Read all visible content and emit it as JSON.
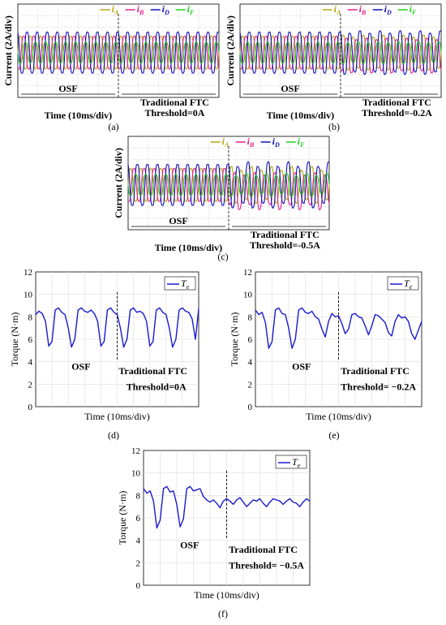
{
  "colors": {
    "iA": "#b5a514",
    "iB": "#e0208c",
    "iD": "#1010b8",
    "iF": "#22cc22",
    "Te": "#1a1ad0"
  },
  "chart_data": [
    {
      "type": "line",
      "label": "(a)",
      "ylabel": "Current (2A/div)",
      "xlabel": "Time (10ms/div)",
      "legend": [
        "iA",
        "iB",
        "iD",
        "iF"
      ],
      "legend_placement": "top-right",
      "annotations": {
        "left": "OSF",
        "right": [
          "Traditional FTC",
          "Threshold=0A"
        ]
      },
      "series": [
        {
          "name": "iA",
          "amplitude_div": 1.6,
          "phase_deg": 0
        },
        {
          "name": "iB",
          "amplitude_div": 1.6,
          "phase_deg": -120
        },
        {
          "name": "iD",
          "amplitude_div": 2.0,
          "phase_deg": 120
        },
        {
          "name": "iF",
          "amplitude_div": 1.0,
          "phase_deg": 180
        }
      ],
      "period_div": 0.5
    },
    {
      "type": "line",
      "label": "(b)",
      "ylabel": "Current (2A/div)",
      "xlabel": "Time (10ms/div)",
      "legend": [
        "iA",
        "iB",
        "iD",
        "iF"
      ],
      "legend_placement": "top-right",
      "annotations": {
        "left": "OSF",
        "right": [
          "Traditional FTC",
          "Threshold=-0.2A"
        ]
      },
      "series": [
        {
          "name": "iA",
          "amplitude_div": 1.6,
          "phase_deg": 0
        },
        {
          "name": "iB",
          "amplitude_div": 1.6,
          "phase_deg": -120
        },
        {
          "name": "iD",
          "amplitude_div": 2.0,
          "phase_deg": 120
        },
        {
          "name": "iF",
          "amplitude_div": 1.0,
          "phase_deg": 180
        }
      ],
      "period_div": 0.5
    },
    {
      "type": "line",
      "label": "(c)",
      "ylabel": "Current (2A/div)",
      "xlabel": "Time (10ms/div)",
      "legend": [
        "iA",
        "iB",
        "iD",
        "iF"
      ],
      "legend_placement": "top-right",
      "annotations": {
        "left": "OSF",
        "right": [
          "Traditional FTC",
          "Threshold=-0.5A"
        ]
      },
      "series": [
        {
          "name": "iA",
          "amplitude_div": 1.6,
          "phase_deg": 0
        },
        {
          "name": "iB",
          "amplitude_div": 1.6,
          "phase_deg": -120
        },
        {
          "name": "iD",
          "amplitude_div": 2.0,
          "phase_deg": 120
        },
        {
          "name": "iF",
          "amplitude_div": 1.0,
          "phase_deg": 180
        }
      ],
      "period_div": 0.5
    },
    {
      "type": "line",
      "label": "(d)",
      "ylabel": "Torque (N·m)",
      "xlabel": "Time (10ms/div)",
      "ylim": [
        0,
        12
      ],
      "yticks": [
        0,
        2,
        4,
        6,
        8,
        10,
        12
      ],
      "grid": true,
      "legend": [
        "Te"
      ],
      "legend_placement": "top-right",
      "annotations": {
        "left": "OSF",
        "right": [
          "Traditional FTC",
          "Threshold=0A"
        ]
      },
      "series": [
        {
          "name": "Te",
          "x": [
            0,
            0.2,
            0.4,
            0.6,
            0.8,
            1.0,
            1.2,
            1.4,
            1.6,
            1.8,
            2.0,
            2.2,
            2.4,
            2.6,
            2.8,
            3.0,
            3.2,
            3.4,
            3.6,
            3.8,
            4.0,
            4.2,
            4.4,
            4.6,
            4.8,
            5.0,
            5.2,
            5.4,
            5.6,
            5.8,
            6.0,
            6.2,
            6.4,
            6.6,
            6.8,
            7.0,
            7.2,
            7.4,
            7.6,
            7.8,
            8.0,
            8.2,
            8.4,
            8.6,
            8.8,
            9.0,
            9.2,
            9.4,
            9.6,
            9.8,
            10.0
          ],
          "y": [
            8.2,
            8.5,
            8.3,
            7.6,
            5.4,
            5.8,
            8.6,
            8.8,
            8.4,
            8.2,
            7.0,
            5.3,
            6.0,
            8.6,
            8.8,
            8.5,
            8.4,
            8.6,
            8.3,
            7.6,
            5.4,
            5.8,
            8.6,
            8.8,
            8.4,
            8.2,
            7.0,
            5.3,
            6.0,
            8.6,
            8.8,
            8.4,
            8.5,
            8.3,
            7.6,
            5.4,
            5.8,
            8.6,
            8.8,
            8.4,
            8.2,
            7.0,
            5.3,
            6.0,
            8.6,
            8.8,
            8.5,
            8.4,
            7.8,
            6.0,
            8.7
          ]
        }
      ]
    },
    {
      "type": "line",
      "label": "(e)",
      "ylabel": "Torque (N·m)",
      "xlabel": "Time (10ms/div)",
      "ylim": [
        0,
        12
      ],
      "yticks": [
        0,
        2,
        4,
        6,
        8,
        10,
        12
      ],
      "grid": true,
      "legend": [
        "Te"
      ],
      "legend_placement": "top-right",
      "annotations": {
        "left": "OSF",
        "right": [
          "Traditional FTC",
          "Threshold= −0.2A"
        ]
      },
      "series": [
        {
          "name": "Te",
          "x": [
            0,
            0.2,
            0.4,
            0.6,
            0.8,
            1.0,
            1.2,
            1.4,
            1.6,
            1.8,
            2.0,
            2.2,
            2.4,
            2.6,
            2.8,
            3.0,
            3.2,
            3.4,
            3.6,
            3.8,
            4.0,
            4.2,
            4.4,
            4.6,
            4.8,
            5.0,
            5.2,
            5.4,
            5.6,
            5.8,
            6.0,
            6.2,
            6.4,
            6.6,
            6.8,
            7.0,
            7.2,
            7.4,
            7.6,
            7.8,
            8.0,
            8.2,
            8.4,
            8.6,
            8.8,
            9.0,
            9.2,
            9.4,
            9.6,
            9.8,
            10.0
          ],
          "y": [
            8.6,
            8.2,
            8.4,
            7.5,
            5.2,
            5.8,
            8.6,
            8.8,
            8.3,
            8.2,
            7.0,
            5.2,
            6.0,
            8.6,
            8.8,
            8.4,
            8.3,
            8.5,
            8.0,
            7.8,
            6.9,
            6.2,
            7.6,
            8.3,
            8.0,
            8.1,
            7.4,
            6.5,
            6.9,
            8.2,
            8.3,
            8.0,
            7.9,
            7.2,
            6.4,
            7.2,
            8.2,
            8.1,
            7.8,
            7.5,
            6.6,
            6.3,
            7.6,
            8.2,
            7.9,
            8.0,
            7.6,
            6.5,
            6.0,
            6.8,
            7.6
          ]
        }
      ]
    },
    {
      "type": "line",
      "label": "(f)",
      "ylabel": "Torque (N·m)",
      "xlabel": "Time (10ms/div)",
      "ylim": [
        0,
        12
      ],
      "yticks": [
        0,
        2,
        4,
        6,
        8,
        10,
        12
      ],
      "grid": true,
      "legend": [
        "Te"
      ],
      "legend_placement": "top-right",
      "annotations": {
        "left": "OSF",
        "right": [
          "Traditional FTC",
          "Threshold= −0.5A"
        ]
      },
      "series": [
        {
          "name": "Te",
          "x": [
            0,
            0.2,
            0.4,
            0.6,
            0.8,
            1.0,
            1.2,
            1.4,
            1.6,
            1.8,
            2.0,
            2.2,
            2.4,
            2.6,
            2.8,
            3.0,
            3.2,
            3.4,
            3.6,
            3.8,
            4.0,
            4.2,
            4.4,
            4.6,
            4.8,
            5.0,
            5.2,
            5.4,
            5.6,
            5.8,
            6.0,
            6.2,
            6.4,
            6.6,
            6.8,
            7.0,
            7.2,
            7.4,
            7.6,
            7.8,
            8.0,
            8.2,
            8.4,
            8.6,
            8.8,
            9.0,
            9.2,
            9.4,
            9.6,
            9.8,
            10.0
          ],
          "y": [
            8.6,
            8.2,
            8.4,
            7.5,
            5.1,
            5.8,
            8.6,
            8.8,
            8.3,
            8.4,
            7.2,
            5.2,
            5.9,
            8.6,
            8.8,
            8.4,
            8.5,
            8.6,
            7.9,
            7.6,
            7.4,
            7.6,
            7.3,
            6.9,
            7.5,
            7.7,
            7.5,
            7.2,
            7.6,
            7.8,
            7.4,
            7.0,
            7.3,
            7.6,
            7.5,
            7.7,
            7.3,
            7.0,
            7.4,
            7.7,
            7.6,
            7.5,
            7.2,
            7.5,
            7.7,
            7.4,
            7.3,
            7.0,
            7.4,
            7.7,
            7.5
          ]
        }
      ]
    }
  ]
}
